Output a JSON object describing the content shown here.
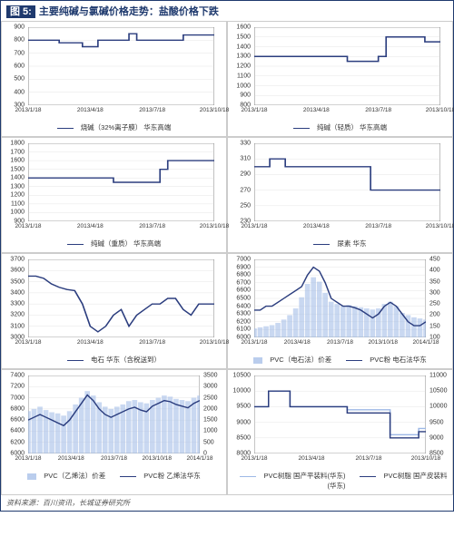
{
  "figure_label": "图 5:",
  "title": "主要纯碱与氯碱价格走势：盐酸价格下跌",
  "source": "资料来源：百川资讯，长城证券研究所",
  "colors": {
    "primary_line": "#2b3d7e",
    "secondary_line": "#9db8e6",
    "bar_fill": "#9db8e6",
    "axis": "#333333",
    "grid": "#d0d0d0",
    "bg": "#ffffff"
  },
  "x_labels_4": [
    "2013/1/18",
    "2013/4/18",
    "2013/7/18",
    "2013/10/18"
  ],
  "x_labels_5": [
    "2013/1/18",
    "2013/4/18",
    "2013/7/18",
    "2013/10/18",
    "2014/1/18"
  ],
  "panels": [
    {
      "legend": [
        {
          "style": "line",
          "label": "烧碱（32%离子膜） 华东高端"
        }
      ],
      "ylim": [
        300,
        900
      ],
      "ystep": 100,
      "x_labels": "x_labels_4",
      "series": [
        {
          "type": "step",
          "color": "primary",
          "data": [
            800,
            800,
            800,
            800,
            780,
            780,
            780,
            750,
            750,
            800,
            800,
            800,
            800,
            850,
            800,
            800,
            800,
            800,
            800,
            800,
            840,
            840,
            840,
            840,
            840
          ]
        }
      ]
    },
    {
      "legend": [
        {
          "style": "line",
          "label": "纯碱（轻质） 华东高端"
        }
      ],
      "ylim": [
        800,
        1600
      ],
      "ystep": 100,
      "x_labels": "x_labels_4",
      "series": [
        {
          "type": "step",
          "color": "primary",
          "data": [
            1300,
            1300,
            1300,
            1300,
            1300,
            1300,
            1300,
            1300,
            1300,
            1300,
            1300,
            1300,
            1250,
            1250,
            1250,
            1250,
            1300,
            1500,
            1500,
            1500,
            1500,
            1500,
            1450,
            1450,
            1450
          ]
        }
      ]
    },
    {
      "legend": [
        {
          "style": "line",
          "label": "纯碱（重质） 华东高端"
        }
      ],
      "ylim": [
        900,
        1800
      ],
      "ystep": 100,
      "x_labels": "x_labels_4",
      "series": [
        {
          "type": "step",
          "color": "primary",
          "data": [
            1400,
            1400,
            1400,
            1400,
            1400,
            1400,
            1400,
            1400,
            1400,
            1400,
            1400,
            1350,
            1350,
            1350,
            1350,
            1350,
            1350,
            1500,
            1600,
            1600,
            1600,
            1600,
            1600,
            1600,
            1600
          ]
        }
      ]
    },
    {
      "legend": [
        {
          "style": "line",
          "label": "尿素 华东"
        }
      ],
      "ylim": [
        230,
        330
      ],
      "ystep": 20,
      "x_labels": "x_labels_4",
      "series": [
        {
          "type": "step",
          "color": "primary",
          "data": [
            300,
            300,
            310,
            310,
            300,
            300,
            300,
            300,
            300,
            300,
            300,
            300,
            300,
            300,
            300,
            270,
            270,
            270,
            270,
            270,
            270,
            270,
            270,
            270,
            270
          ]
        }
      ]
    },
    {
      "legend": [
        {
          "style": "line",
          "label": "电石 华东（含税送到）"
        }
      ],
      "ylim": [
        3000,
        3700
      ],
      "ystep": 100,
      "x_labels": "x_labels_4",
      "series": [
        {
          "type": "line",
          "color": "primary",
          "data": [
            3550,
            3550,
            3530,
            3480,
            3450,
            3430,
            3420,
            3300,
            3100,
            3050,
            3100,
            3200,
            3250,
            3100,
            3200,
            3250,
            3300,
            3300,
            3350,
            3350,
            3250,
            3200,
            3300,
            3300,
            3300
          ]
        }
      ]
    },
    {
      "legend": [
        {
          "style": "bar",
          "label": "PVC（电石法）价差"
        },
        {
          "style": "line",
          "label": "PVC粉 电石法华东"
        }
      ],
      "dual": true,
      "ylim": [
        6000,
        7000
      ],
      "ystep": 100,
      "ylim2": [
        100,
        450
      ],
      "ystep2": 50,
      "x_labels": "x_labels_5",
      "series": [
        {
          "type": "bar",
          "color": "bar",
          "axis": 2,
          "data": [
            140,
            145,
            150,
            155,
            165,
            180,
            200,
            230,
            280,
            340,
            370,
            350,
            300,
            260,
            250,
            240,
            245,
            240,
            235,
            230,
            225,
            230,
            250,
            260,
            240,
            210,
            200,
            190,
            185,
            180
          ]
        },
        {
          "type": "line",
          "color": "primary",
          "data": [
            6350,
            6350,
            6400,
            6400,
            6450,
            6500,
            6550,
            6600,
            6650,
            6800,
            6900,
            6850,
            6700,
            6500,
            6450,
            6400,
            6400,
            6380,
            6350,
            6300,
            6250,
            6300,
            6400,
            6450,
            6400,
            6300,
            6200,
            6150,
            6150,
            6200
          ]
        }
      ]
    },
    {
      "legend": [
        {
          "style": "bar",
          "label": "PVC（乙烯法）价差"
        },
        {
          "style": "line",
          "label": "PVC粉 乙烯法华东"
        }
      ],
      "dual": true,
      "ylim": [
        6000,
        7400
      ],
      "ystep": 200,
      "ylim2": [
        0,
        3500
      ],
      "ystep2": 500,
      "x_labels": "x_labels_5",
      "series": [
        {
          "type": "bar",
          "color": "bar",
          "axis": 2,
          "data": [
            1900,
            2000,
            2100,
            1950,
            1850,
            1800,
            1700,
            1900,
            2200,
            2500,
            2800,
            2600,
            2300,
            2100,
            2000,
            2100,
            2200,
            2350,
            2400,
            2300,
            2250,
            2400,
            2500,
            2600,
            2550,
            2450,
            2400,
            2350,
            2500,
            2600
          ]
        },
        {
          "type": "line",
          "color": "primary",
          "data": [
            6600,
            6650,
            6700,
            6650,
            6600,
            6550,
            6500,
            6600,
            6750,
            6900,
            7050,
            6950,
            6800,
            6700,
            6650,
            6700,
            6750,
            6800,
            6830,
            6780,
            6750,
            6850,
            6900,
            6950,
            6930,
            6880,
            6850,
            6820,
            6900,
            6950
          ]
        }
      ]
    },
    {
      "legend": [
        {
          "style": "line-light",
          "label": "PVC树脂 国产平装料(华东)"
        },
        {
          "style": "line",
          "label": "PVC树脂 国产皮装料(华东)"
        }
      ],
      "dual": true,
      "ylim": [
        8000,
        10500
      ],
      "ystep": 500,
      "ylim2": [
        8500,
        11000
      ],
      "ystep2": 500,
      "x_labels": "x_labels_4",
      "series": [
        {
          "type": "step",
          "color": "secondary",
          "data": [
            9500,
            9500,
            10000,
            10000,
            10000,
            9500,
            9500,
            9500,
            9500,
            9500,
            9500,
            9500,
            9500,
            9400,
            9400,
            9400,
            9400,
            9400,
            9400,
            8600,
            8600,
            8600,
            8600,
            8800,
            8800
          ]
        },
        {
          "type": "step",
          "color": "primary",
          "axis": 2,
          "data": [
            10000,
            10000,
            10500,
            10500,
            10500,
            10000,
            10000,
            10000,
            10000,
            10000,
            10000,
            10000,
            10000,
            9800,
            9800,
            9800,
            9800,
            9800,
            9800,
            9000,
            9000,
            9000,
            9000,
            9200,
            9200
          ]
        }
      ]
    }
  ]
}
